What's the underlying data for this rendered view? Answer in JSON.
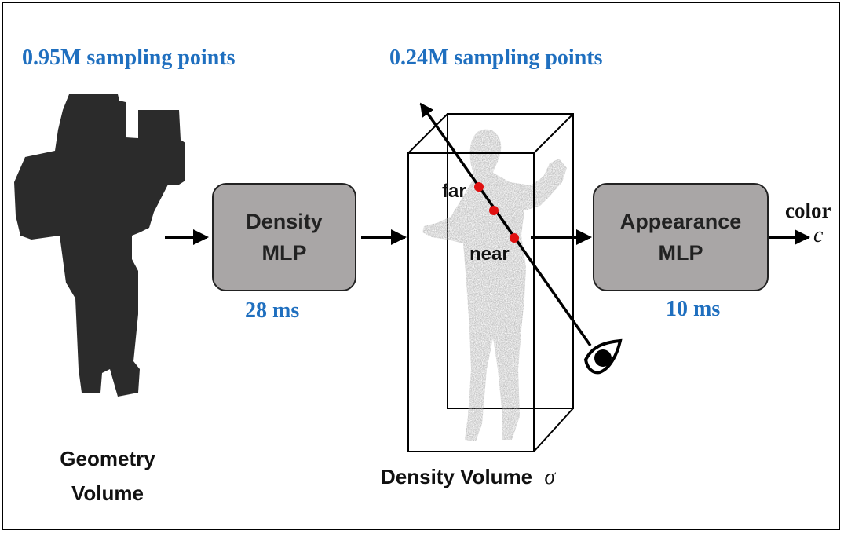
{
  "geometry": {
    "sampling_label": "0.95M sampling points",
    "caption_line1": "Geometry",
    "caption_line2": "Volume"
  },
  "density_mlp": {
    "line1": "Density",
    "line2": "MLP",
    "time": "28 ms"
  },
  "density_volume": {
    "sampling_label": "0.24M sampling points",
    "caption": "Density Volume",
    "symbol": "σ",
    "far_label": "far",
    "near_label": "near"
  },
  "appearance_mlp": {
    "line1": "Appearance",
    "line2": "MLP",
    "time": "10 ms"
  },
  "output": {
    "label": "color",
    "symbol": "c"
  },
  "icons": {
    "viewer": "eye-icon"
  },
  "colors": {
    "accent_blue": "#1f6fbf",
    "sample_point_red": "#e01010",
    "mlp_fill": "#a9a6a6",
    "geometry_fill": "#2b2b2b",
    "silhouette_fill": "#a8a8a8"
  }
}
